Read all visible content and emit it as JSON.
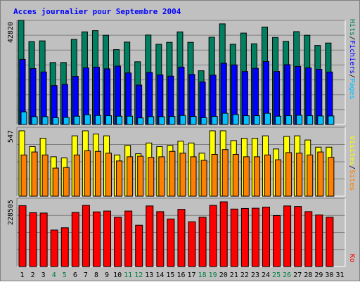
{
  "title": "Acces journalier pour Septembre 2004",
  "colors": {
    "background": "#c0c0c0",
    "hits": "#008060",
    "files": "#0000ff",
    "pages": "#00c0ff",
    "visits": "#ffff00",
    "sites": "#ff8000",
    "kbytes": "#ff0000",
    "weekend_label": "#008040",
    "weekday_label": "#000000"
  },
  "chart_data": [
    {
      "type": "bar",
      "panel": "hits-files-pages",
      "ymax_label": "42820",
      "ymax": 42820,
      "right_label": {
        "pages": "Pages",
        "sep1": "/",
        "files": "Fichiers",
        "sep2": "/",
        "hits": "Hits"
      },
      "categories": [
        "1",
        "2",
        "3",
        "4",
        "5",
        "6",
        "7",
        "8",
        "9",
        "10",
        "11",
        "12",
        "13",
        "14",
        "15",
        "16",
        "17",
        "18",
        "19",
        "20",
        "21",
        "22",
        "23",
        "24",
        "25",
        "26",
        "27",
        "28",
        "29",
        "30",
        "31"
      ],
      "weekend": [
        4,
        5,
        11,
        12,
        18,
        19,
        25,
        26
      ],
      "series": [
        {
          "name": "Hits",
          "values": [
            42820,
            34100,
            34400,
            25500,
            25500,
            35000,
            38100,
            38600,
            36700,
            30800,
            33900,
            25800,
            36800,
            33000,
            33800,
            38100,
            33800,
            22100,
            35900,
            41400,
            33000,
            37600,
            33200,
            40100,
            35800,
            34200,
            38200,
            36700,
            32500,
            33500,
            0
          ]
        },
        {
          "name": "Fichiers",
          "values": [
            26800,
            23000,
            21600,
            16000,
            16500,
            19800,
            23300,
            23600,
            22900,
            24000,
            21200,
            16200,
            21400,
            20400,
            19900,
            23600,
            20600,
            17500,
            20300,
            25200,
            24500,
            21800,
            23100,
            25900,
            21800,
            24600,
            23900,
            23300,
            22700,
            21600,
            0
          ]
        },
        {
          "name": "Pages",
          "values": [
            5200,
            3200,
            3200,
            2800,
            2900,
            3400,
            4000,
            3700,
            3600,
            3400,
            3400,
            2700,
            3200,
            3200,
            3300,
            3700,
            3300,
            2800,
            3300,
            4600,
            4100,
            3600,
            3600,
            4600,
            3400,
            3600,
            3800,
            3600,
            3500,
            3500,
            0
          ]
        }
      ]
    },
    {
      "type": "bar",
      "panel": "visits-sites",
      "ymax_label": "547",
      "ymax": 547,
      "right_label": {
        "sites": "Sites",
        "sep": "/",
        "visits": "Visites"
      },
      "categories": [
        "1",
        "2",
        "3",
        "4",
        "5",
        "6",
        "7",
        "8",
        "9",
        "10",
        "11",
        "12",
        "13",
        "14",
        "15",
        "16",
        "17",
        "18",
        "19",
        "20",
        "21",
        "22",
        "23",
        "24",
        "25",
        "26",
        "27",
        "28",
        "29",
        "30",
        "31"
      ],
      "series": [
        {
          "name": "Visites",
          "values": [
            547,
            415,
            485,
            330,
            320,
            505,
            547,
            520,
            505,
            345,
            425,
            355,
            445,
            415,
            425,
            460,
            445,
            360,
            547,
            547,
            465,
            485,
            485,
            505,
            395,
            500,
            505,
            470,
            410,
            410,
            0
          ]
        },
        {
          "name": "Sites",
          "values": [
            345,
            370,
            345,
            235,
            240,
            345,
            380,
            375,
            360,
            295,
            330,
            335,
            325,
            330,
            375,
            360,
            330,
            300,
            350,
            390,
            350,
            330,
            330,
            345,
            305,
            365,
            360,
            345,
            370,
            325,
            0
          ]
        }
      ]
    },
    {
      "type": "bar",
      "panel": "kbytes",
      "ymax_label": "228505",
      "ymax": 228505,
      "right_label": "Ko",
      "categories": [
        "1",
        "2",
        "3",
        "4",
        "5",
        "6",
        "7",
        "8",
        "9",
        "10",
        "11",
        "12",
        "13",
        "14",
        "15",
        "16",
        "17",
        "18",
        "19",
        "20",
        "21",
        "22",
        "23",
        "24",
        "25",
        "26",
        "27",
        "28",
        "29",
        "30",
        "31"
      ],
      "series": [
        {
          "name": "Ko",
          "values": [
            215000,
            190000,
            189000,
            129000,
            137000,
            191000,
            216000,
            193000,
            196000,
            174000,
            196000,
            146000,
            214000,
            194000,
            168000,
            202000,
            158000,
            174000,
            216000,
            228505,
            203000,
            205000,
            206000,
            210000,
            180000,
            214000,
            212000,
            194000,
            182000,
            174000,
            0
          ]
        }
      ]
    }
  ]
}
